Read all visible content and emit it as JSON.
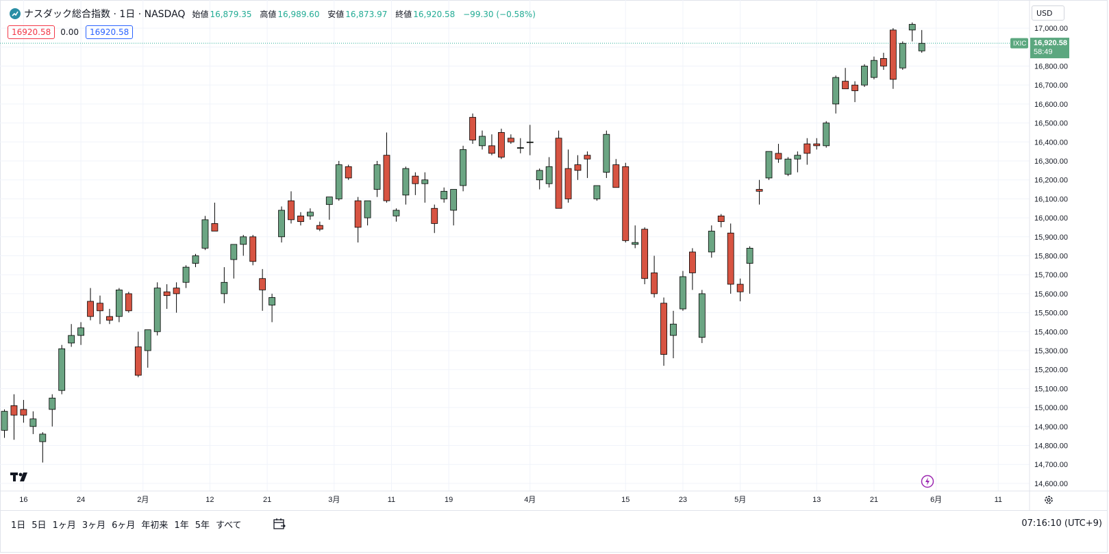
{
  "header": {
    "symbol_title": "ナスダック総合指数 · 1日 · NASDAQ",
    "open_label": "始値",
    "open_value": "16,879.35",
    "high_label": "高値",
    "high_value": "16,989.60",
    "low_label": "安値",
    "low_value": "16,873.97",
    "close_label": "終値",
    "close_value": "16,920.58",
    "change": "−99.30 (−0.58%)"
  },
  "quote_row": {
    "left_box": "16920.58",
    "middle": "0.00",
    "right_box": "16920.58"
  },
  "currency": "USD",
  "price_label": {
    "ticker": "IXIC",
    "price": "16,920.58",
    "countdown": "58:49"
  },
  "colors": {
    "up": "#6ba583",
    "down": "#d75442",
    "label_bg": "#5ba77f"
  },
  "range_buttons": [
    "1日",
    "5日",
    "1ヶ月",
    "3ヶ月",
    "6ヶ月",
    "年初来",
    "1年",
    "5年",
    "すべて"
  ],
  "timezone_clock": "07:16:10 (UTC+9)",
  "icons": {
    "logo": "tradingview-logo-icon",
    "calendar": "calendar-range-icon",
    "bolt": "lightning-icon",
    "settings": "gear-icon"
  },
  "chart_data": {
    "type": "candlestick",
    "title": "ナスダック総合指数 · 1日 · NASDAQ",
    "y_axis_ticks": [
      14600,
      14700,
      14800,
      14900,
      15000,
      15100,
      15200,
      15300,
      15400,
      15500,
      15600,
      15700,
      15800,
      15900,
      16000,
      16100,
      16200,
      16300,
      16400,
      16500,
      16600,
      16700,
      16800,
      16900,
      17000
    ],
    "ylim": [
      14560,
      17040
    ],
    "x_tick_labels": [
      "16",
      "24",
      "2月",
      "12",
      "21",
      "3月",
      "11",
      "19",
      "4月",
      "15",
      "23",
      "5月",
      "13",
      "21",
      "6月",
      "11"
    ],
    "last_price": 16920.58,
    "candles": [
      {
        "o": 14880,
        "h": 14990,
        "l": 14840,
        "c": 14980
      },
      {
        "o": 15010,
        "h": 15070,
        "l": 14830,
        "c": 14960
      },
      {
        "o": 14990,
        "h": 15040,
        "l": 14920,
        "c": 14960
      },
      {
        "o": 14900,
        "h": 14980,
        "l": 14860,
        "c": 14940
      },
      {
        "o": 14820,
        "h": 14870,
        "l": 14710,
        "c": 14860
      },
      {
        "o": 14990,
        "h": 15070,
        "l": 14900,
        "c": 15050
      },
      {
        "o": 15090,
        "h": 15330,
        "l": 15070,
        "c": 15310
      },
      {
        "o": 15340,
        "h": 15440,
        "l": 15320,
        "c": 15380
      },
      {
        "o": 15380,
        "h": 15450,
        "l": 15330,
        "c": 15420
      },
      {
        "o": 15560,
        "h": 15630,
        "l": 15460,
        "c": 15480
      },
      {
        "o": 15550,
        "h": 15590,
        "l": 15440,
        "c": 15510
      },
      {
        "o": 15480,
        "h": 15520,
        "l": 15440,
        "c": 15460
      },
      {
        "o": 15480,
        "h": 15630,
        "l": 15450,
        "c": 15620
      },
      {
        "o": 15600,
        "h": 15610,
        "l": 15500,
        "c": 15510
      },
      {
        "o": 15320,
        "h": 15400,
        "l": 15160,
        "c": 15170
      },
      {
        "o": 15300,
        "h": 15390,
        "l": 15210,
        "c": 15410
      },
      {
        "o": 15400,
        "h": 15660,
        "l": 15380,
        "c": 15630
      },
      {
        "o": 15610,
        "h": 15650,
        "l": 15520,
        "c": 15590
      },
      {
        "o": 15630,
        "h": 15660,
        "l": 15500,
        "c": 15600
      },
      {
        "o": 15660,
        "h": 15750,
        "l": 15630,
        "c": 15740
      },
      {
        "o": 15760,
        "h": 15810,
        "l": 15740,
        "c": 15800
      },
      {
        "o": 15840,
        "h": 16010,
        "l": 15830,
        "c": 15990
      },
      {
        "o": 15970,
        "h": 16080,
        "l": 15930,
        "c": 15930
      },
      {
        "o": 15600,
        "h": 15740,
        "l": 15550,
        "c": 15660
      },
      {
        "o": 15780,
        "h": 15850,
        "l": 15680,
        "c": 15860
      },
      {
        "o": 15860,
        "h": 15910,
        "l": 15800,
        "c": 15900
      },
      {
        "o": 15900,
        "h": 15910,
        "l": 15750,
        "c": 15770
      },
      {
        "o": 15680,
        "h": 15730,
        "l": 15510,
        "c": 15620
      },
      {
        "o": 15540,
        "h": 15600,
        "l": 15450,
        "c": 15580
      },
      {
        "o": 15900,
        "h": 16060,
        "l": 15870,
        "c": 16040
      },
      {
        "o": 16090,
        "h": 16140,
        "l": 15970,
        "c": 15990
      },
      {
        "o": 16010,
        "h": 16030,
        "l": 15960,
        "c": 15980
      },
      {
        "o": 16010,
        "h": 16050,
        "l": 15990,
        "c": 16030
      },
      {
        "o": 15960,
        "h": 15980,
        "l": 15930,
        "c": 15940
      },
      {
        "o": 16070,
        "h": 16110,
        "l": 15990,
        "c": 16110
      },
      {
        "o": 16100,
        "h": 16300,
        "l": 16090,
        "c": 16280
      },
      {
        "o": 16270,
        "h": 16280,
        "l": 16200,
        "c": 16210
      },
      {
        "o": 16090,
        "h": 16110,
        "l": 15870,
        "c": 15950
      },
      {
        "o": 16000,
        "h": 16090,
        "l": 15960,
        "c": 16090
      },
      {
        "o": 16150,
        "h": 16300,
        "l": 16110,
        "c": 16280
      },
      {
        "o": 16330,
        "h": 16450,
        "l": 16080,
        "c": 16090
      },
      {
        "o": 16010,
        "h": 16050,
        "l": 15980,
        "c": 16040
      },
      {
        "o": 16120,
        "h": 16270,
        "l": 16070,
        "c": 16260
      },
      {
        "o": 16220,
        "h": 16240,
        "l": 16120,
        "c": 16180
      },
      {
        "o": 16180,
        "h": 16240,
        "l": 16080,
        "c": 16200
      },
      {
        "o": 16050,
        "h": 16070,
        "l": 15920,
        "c": 15970
      },
      {
        "o": 16100,
        "h": 16160,
        "l": 16080,
        "c": 16140
      },
      {
        "o": 16040,
        "h": 16150,
        "l": 15960,
        "c": 16150
      },
      {
        "o": 16170,
        "h": 16380,
        "l": 16140,
        "c": 16360
      },
      {
        "o": 16530,
        "h": 16550,
        "l": 16390,
        "c": 16410
      },
      {
        "o": 16380,
        "h": 16460,
        "l": 16360,
        "c": 16430
      },
      {
        "o": 16380,
        "h": 16440,
        "l": 16330,
        "c": 16340
      },
      {
        "o": 16450,
        "h": 16470,
        "l": 16310,
        "c": 16320
      },
      {
        "o": 16420,
        "h": 16440,
        "l": 16390,
        "c": 16400
      },
      {
        "o": 16370,
        "h": 16420,
        "l": 16340,
        "c": 16370
      },
      {
        "o": 16400,
        "h": 16490,
        "l": 16330,
        "c": 16400
      },
      {
        "o": 16200,
        "h": 16260,
        "l": 16150,
        "c": 16250
      },
      {
        "o": 16180,
        "h": 16320,
        "l": 16160,
        "c": 16270
      },
      {
        "o": 16420,
        "h": 16460,
        "l": 16060,
        "c": 16050
      },
      {
        "o": 16260,
        "h": 16360,
        "l": 16080,
        "c": 16100
      },
      {
        "o": 16280,
        "h": 16330,
        "l": 16200,
        "c": 16250
      },
      {
        "o": 16330,
        "h": 16350,
        "l": 16210,
        "c": 16310
      },
      {
        "o": 16100,
        "h": 16170,
        "l": 16090,
        "c": 16170
      },
      {
        "o": 16240,
        "h": 16460,
        "l": 16210,
        "c": 16440
      },
      {
        "o": 16280,
        "h": 16310,
        "l": 16180,
        "c": 16160
      },
      {
        "o": 16270,
        "h": 16290,
        "l": 15870,
        "c": 15880
      },
      {
        "o": 15860,
        "h": 15960,
        "l": 15840,
        "c": 15870
      },
      {
        "o": 15940,
        "h": 15950,
        "l": 15650,
        "c": 15680
      },
      {
        "o": 15710,
        "h": 15800,
        "l": 15580,
        "c": 15600
      },
      {
        "o": 15550,
        "h": 15580,
        "l": 15220,
        "c": 15280
      },
      {
        "o": 15380,
        "h": 15510,
        "l": 15260,
        "c": 15440
      },
      {
        "o": 15520,
        "h": 15720,
        "l": 15510,
        "c": 15690
      },
      {
        "o": 15820,
        "h": 15840,
        "l": 15620,
        "c": 15710
      },
      {
        "o": 15370,
        "h": 15620,
        "l": 15340,
        "c": 15600
      },
      {
        "o": 15820,
        "h": 15960,
        "l": 15790,
        "c": 15930
      },
      {
        "o": 16010,
        "h": 16020,
        "l": 15950,
        "c": 15980
      },
      {
        "o": 15920,
        "h": 15970,
        "l": 15600,
        "c": 15650
      },
      {
        "o": 15650,
        "h": 15680,
        "l": 15560,
        "c": 15610
      },
      {
        "o": 15760,
        "h": 15850,
        "l": 15600,
        "c": 15840
      },
      {
        "o": 16150,
        "h": 16200,
        "l": 16070,
        "c": 16140
      },
      {
        "o": 16210,
        "h": 16350,
        "l": 16200,
        "c": 16350
      },
      {
        "o": 16340,
        "h": 16390,
        "l": 16290,
        "c": 16310
      },
      {
        "o": 16230,
        "h": 16320,
        "l": 16220,
        "c": 16310
      },
      {
        "o": 16310,
        "h": 16350,
        "l": 16240,
        "c": 16330
      },
      {
        "o": 16390,
        "h": 16420,
        "l": 16280,
        "c": 16340
      },
      {
        "o": 16390,
        "h": 16420,
        "l": 16360,
        "c": 16380
      },
      {
        "o": 16380,
        "h": 16510,
        "l": 16370,
        "c": 16500
      },
      {
        "o": 16600,
        "h": 16750,
        "l": 16550,
        "c": 16740
      },
      {
        "o": 16720,
        "h": 16790,
        "l": 16680,
        "c": 16680
      },
      {
        "o": 16700,
        "h": 16720,
        "l": 16610,
        "c": 16670
      },
      {
        "o": 16700,
        "h": 16810,
        "l": 16690,
        "c": 16800
      },
      {
        "o": 16740,
        "h": 16850,
        "l": 16730,
        "c": 16830
      },
      {
        "o": 16840,
        "h": 16870,
        "l": 16780,
        "c": 16800
      },
      {
        "o": 16990,
        "h": 17000,
        "l": 16680,
        "c": 16730
      },
      {
        "o": 16790,
        "h": 16930,
        "l": 16780,
        "c": 16920
      },
      {
        "o": 16990,
        "h": 17030,
        "l": 16930,
        "c": 17020
      },
      {
        "o": 16880,
        "h": 16990,
        "l": 16870,
        "c": 16920
      }
    ]
  }
}
